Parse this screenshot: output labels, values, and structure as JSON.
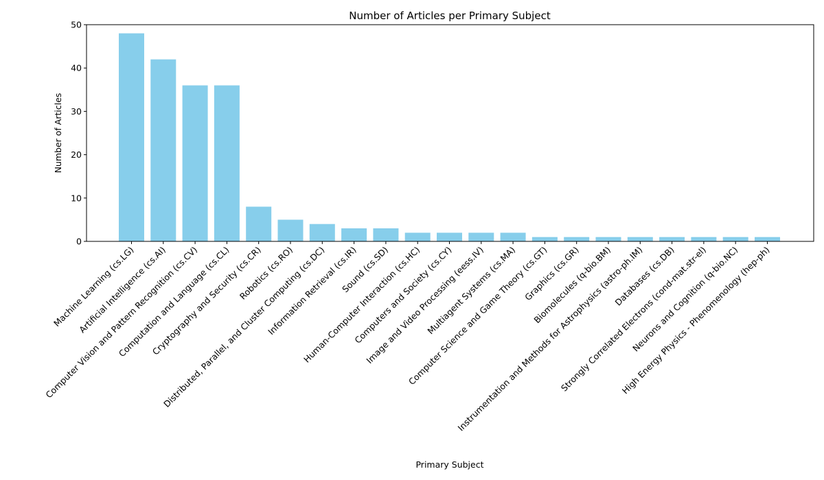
{
  "chart_data": {
    "type": "bar",
    "title": "Number of Articles per Primary Subject",
    "xlabel": "Primary Subject",
    "ylabel": "Number of Articles",
    "ylim": [
      0,
      50
    ],
    "yticks": [
      0,
      10,
      20,
      30,
      40,
      50
    ],
    "grid": false,
    "bar_color": "#87CEEB",
    "categories": [
      "Machine Learning (cs.LG)",
      "Artificial Intelligence (cs.AI)",
      "Computer Vision and Pattern Recognition (cs.CV)",
      "Computation and Language (cs.CL)",
      "Cryptography and Security (cs.CR)",
      "Robotics (cs.RO)",
      "Distributed, Parallel, and Cluster Computing (cs.DC)",
      "Information Retrieval (cs.IR)",
      "Sound (cs.SD)",
      "Human-Computer Interaction (cs.HC)",
      "Computers and Society (cs.CY)",
      "Image and Video Processing (eess.IV)",
      "Multiagent Systems (cs.MA)",
      "Computer Science and Game Theory (cs.GT)",
      "Graphics (cs.GR)",
      "Biomolecules (q-bio.BM)",
      "Instrumentation and Methods for Astrophysics (astro-ph.IM)",
      "Databases (cs.DB)",
      "Strongly Correlated Electrons (cond-mat.str-el)",
      "Neurons and Cognition (q-bio.NC)",
      "High Energy Physics - Phenomenology (hep-ph)"
    ],
    "values": [
      48,
      42,
      36,
      36,
      8,
      5,
      4,
      3,
      3,
      2,
      2,
      2,
      2,
      1,
      1,
      1,
      1,
      1,
      1,
      1,
      1
    ]
  }
}
